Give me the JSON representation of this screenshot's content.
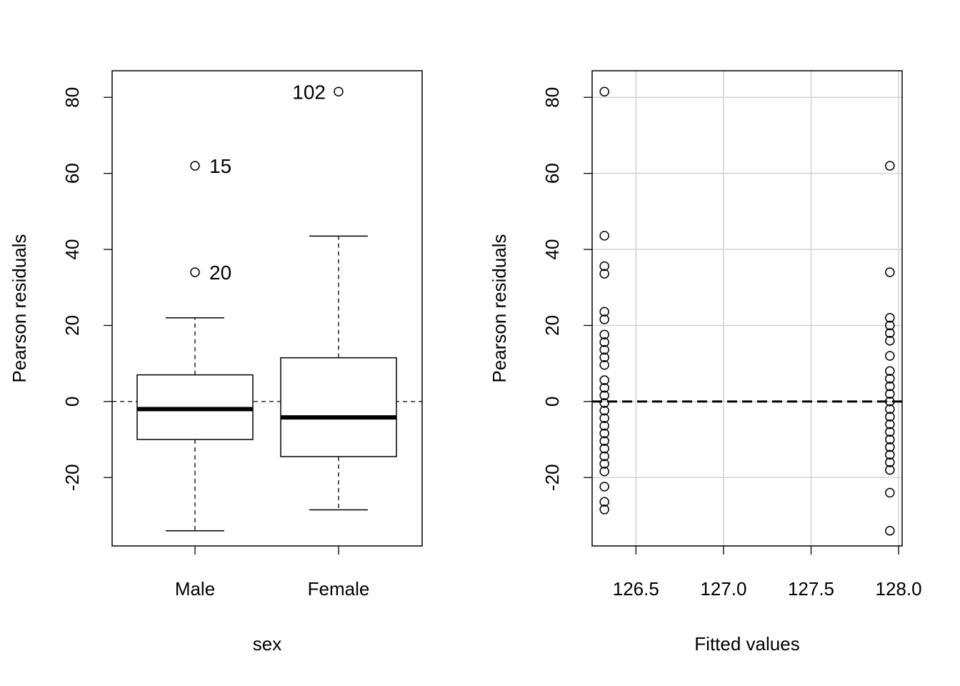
{
  "chart_data": [
    {
      "type": "boxplot",
      "xlabel": "sex",
      "ylabel": "Pearson residuals",
      "ylim": [
        -38,
        87
      ],
      "yticks": [
        -20,
        0,
        20,
        40,
        60,
        80
      ],
      "ytick_labels": [
        "-20",
        "0",
        "20",
        "40",
        "60",
        "80"
      ],
      "reference_line": {
        "y": 0,
        "style": "dashed"
      },
      "boxes": [
        {
          "category": "Male",
          "whisker_low": -34,
          "q1": -10,
          "median": -2,
          "q3": 7,
          "whisker_high": 22,
          "outliers": [
            {
              "y": 62,
              "label": "15"
            },
            {
              "y": 34,
              "label": "20"
            }
          ]
        },
        {
          "category": "Female",
          "whisker_low": -28.5,
          "q1": -14.5,
          "median": -4.2,
          "q3": 11.5,
          "whisker_high": 43.5,
          "outliers": [
            {
              "y": 81.5,
              "label": "102"
            }
          ]
        }
      ]
    },
    {
      "type": "scatter",
      "xlabel": "Fitted values",
      "ylabel": "Pearson residuals",
      "xlim": [
        126.25,
        128.02
      ],
      "ylim": [
        -38,
        87
      ],
      "xticks": [
        126.5,
        127.0,
        127.5,
        128.0
      ],
      "xtick_labels": [
        "126.5",
        "127.0",
        "127.5",
        "128.0"
      ],
      "yticks": [
        -20,
        0,
        20,
        40,
        60,
        80
      ],
      "ytick_labels": [
        "-20",
        "0",
        "20",
        "40",
        "60",
        "80"
      ],
      "grid": true,
      "reference_line": {
        "y": 0,
        "style": "dashed"
      },
      "series": [
        {
          "x": 126.32,
          "y": [
            81.5,
            43.6,
            35.6,
            33.6,
            23.6,
            21.6,
            17.6,
            15.6,
            13.6,
            11.6,
            9.6,
            5.6,
            3.6,
            1.6,
            -0.4,
            -2.4,
            -4.4,
            -6.4,
            -8.4,
            -10.4,
            -12.4,
            -14.4,
            -16.4,
            -18.4,
            -22.4,
            -26.4,
            -28.4
          ]
        },
        {
          "x": 127.95,
          "y": [
            62,
            34,
            22,
            20,
            18,
            16,
            12,
            8,
            6,
            4,
            2,
            0,
            -2,
            -4,
            -6,
            -8,
            -10,
            -12,
            -14,
            -16,
            -18,
            -24,
            -34
          ]
        }
      ]
    }
  ]
}
